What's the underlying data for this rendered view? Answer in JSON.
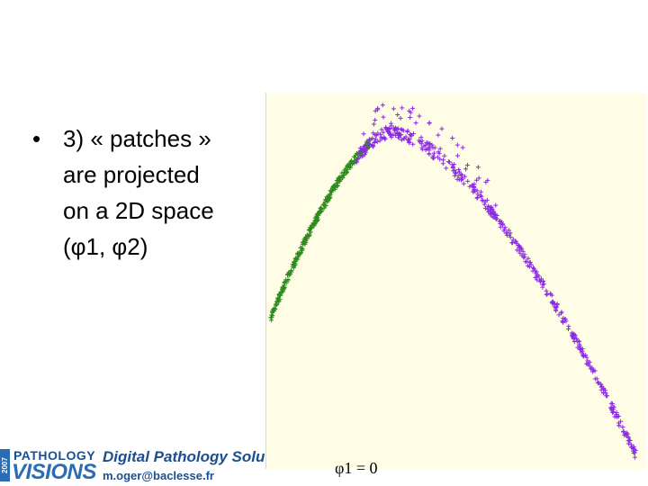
{
  "slide": {
    "bullet_symbol": "•",
    "bullet_lines": [
      "3) « patches »",
      "are projected",
      "on a 2D space",
      "(φ1, φ2)"
    ]
  },
  "plot": {
    "axis_label": "φ1 = 0",
    "colors": {
      "background": "#fffde6",
      "series_a": "#2e8b1e",
      "series_b": "#8a2be2"
    },
    "marker_icon": "plus-marker"
  },
  "footer": {
    "logo_year": "2007",
    "logo_top": "PATHOLOGY",
    "logo_bottom": "VISIONS",
    "title": "Digital Pathology Solutions",
    "email": "m.oger@baclesse.fr"
  }
}
